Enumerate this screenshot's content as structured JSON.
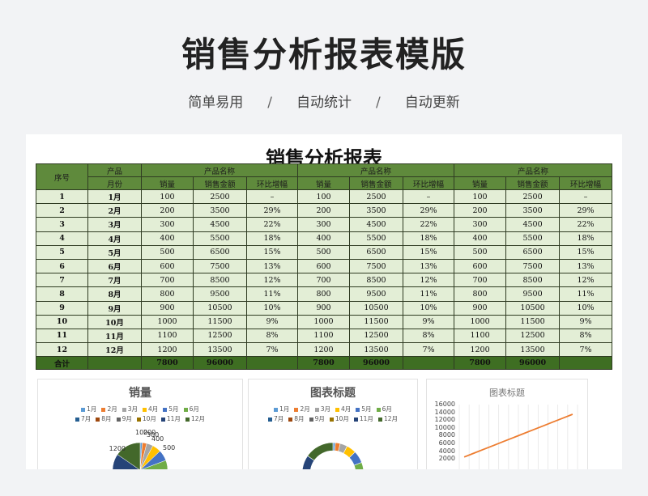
{
  "page": {
    "title": "销售分析报表模版",
    "tags": [
      "简单易用",
      "自动统计",
      "自动更新"
    ],
    "separator": "/"
  },
  "sheet": {
    "title": "销售分析报表",
    "headers": {
      "index": "序号",
      "product": "产品",
      "month": "月份",
      "product_name": "产品名称",
      "qty": "销量",
      "amount": "销售金额",
      "growth": "环比增幅"
    },
    "rows": [
      {
        "no": "1",
        "month": "1月",
        "qty": "100",
        "amount": "2500",
        "growth": "–"
      },
      {
        "no": "2",
        "month": "2月",
        "qty": "200",
        "amount": "3500",
        "growth": "29%"
      },
      {
        "no": "3",
        "month": "3月",
        "qty": "300",
        "amount": "4500",
        "growth": "22%"
      },
      {
        "no": "4",
        "month": "4月",
        "qty": "400",
        "amount": "5500",
        "growth": "18%"
      },
      {
        "no": "5",
        "month": "5月",
        "qty": "500",
        "amount": "6500",
        "growth": "15%"
      },
      {
        "no": "6",
        "month": "6月",
        "qty": "600",
        "amount": "7500",
        "growth": "13%"
      },
      {
        "no": "7",
        "month": "7月",
        "qty": "700",
        "amount": "8500",
        "growth": "12%"
      },
      {
        "no": "8",
        "month": "8月",
        "qty": "800",
        "amount": "9500",
        "growth": "11%"
      },
      {
        "no": "9",
        "month": "9月",
        "qty": "900",
        "amount": "10500",
        "growth": "10%"
      },
      {
        "no": "10",
        "month": "10月",
        "qty": "1000",
        "amount": "11500",
        "growth": "9%"
      },
      {
        "no": "11",
        "month": "11月",
        "qty": "1100",
        "amount": "12500",
        "growth": "8%"
      },
      {
        "no": "12",
        "month": "12月",
        "qty": "1200",
        "amount": "13500",
        "growth": "7%"
      }
    ],
    "total": {
      "label": "合计",
      "qty": "7800",
      "amount": "96000"
    }
  },
  "charts": {
    "pie_title": "销量",
    "donut_title": "图表标题",
    "line_title": "图表标题",
    "legend": [
      "1月",
      "2月",
      "3月",
      "4月",
      "5月",
      "6月",
      "7月",
      "8月",
      "9月",
      "10月",
      "11月",
      "12月"
    ],
    "legend_colors": [
      "#5b9bd5",
      "#ed7d31",
      "#a5a5a5",
      "#ffc000",
      "#4472c4",
      "#70ad47",
      "#255e91",
      "#9e480e",
      "#636363",
      "#997300",
      "#264478",
      "#43682b"
    ],
    "pie_labels": [
      "100",
      "200",
      "300",
      "400",
      "500",
      "1200"
    ],
    "line_yticks": [
      "16000",
      "14000",
      "12000",
      "10000",
      "8000",
      "6000",
      "4000",
      "2000"
    ],
    "line_color": "#ed7d31"
  },
  "chart_data": {
    "type": "line",
    "title": "图表标题",
    "categories": [
      "1月",
      "2月",
      "3月",
      "4月",
      "5月",
      "6月",
      "7月",
      "8月",
      "9月",
      "10月",
      "11月",
      "12月"
    ],
    "series": [
      {
        "values": [
          2500,
          3500,
          4500,
          5500,
          6500,
          7500,
          8500,
          9500,
          10500,
          11500,
          12500,
          13500
        ]
      }
    ],
    "ylim": [
      0,
      16000
    ],
    "grid": true
  }
}
